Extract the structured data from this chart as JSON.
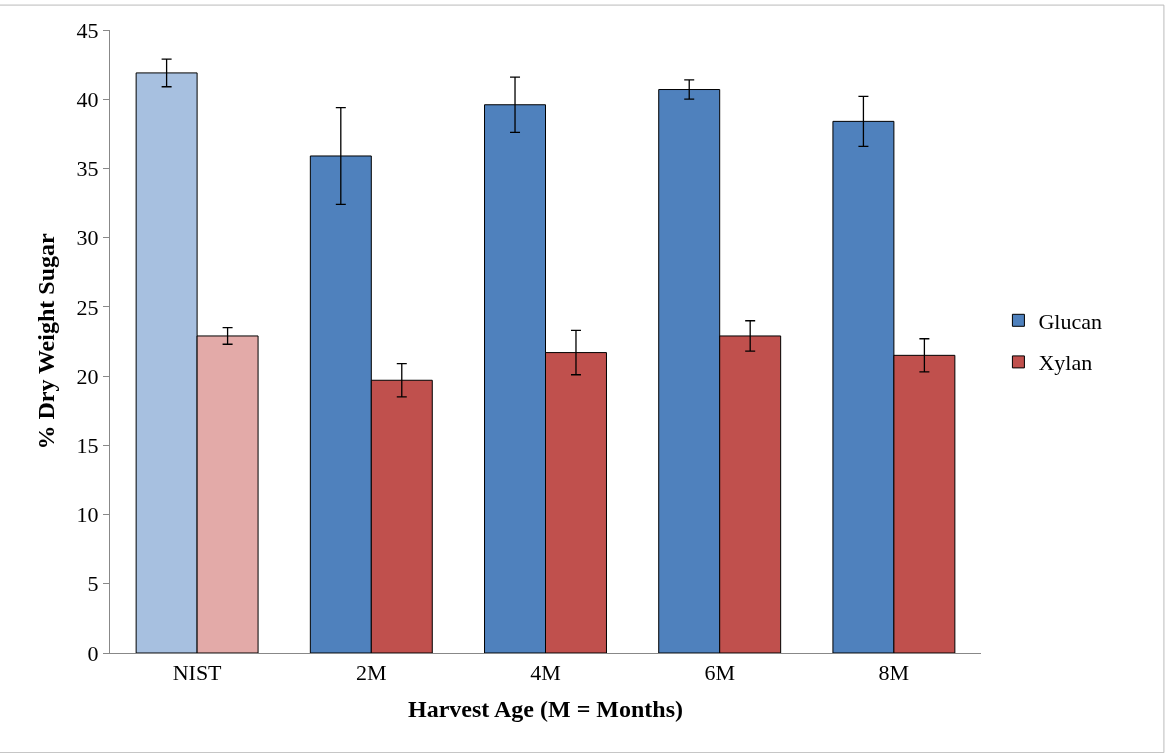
{
  "chart_data": {
    "type": "bar",
    "xlabel": "Harvest Age (M = Months)",
    "ylabel": "% Dry Weight Sugar",
    "categories": [
      "NIST",
      "2M",
      "4M",
      "6M",
      "8M"
    ],
    "series": [
      {
        "name": "Glucan",
        "color": "#4f81bd",
        "colors": [
          "#a7c0e0",
          "#4f81bd",
          "#4f81bd",
          "#4f81bd",
          "#4f81bd"
        ],
        "values": [
          41.9,
          35.9,
          39.6,
          40.7,
          38.4
        ],
        "errors": [
          1.0,
          3.5,
          2.0,
          0.7,
          1.8
        ]
      },
      {
        "name": "Xylan",
        "color": "#c0504d",
        "colors": [
          "#e3aaa8",
          "#c0504d",
          "#c0504d",
          "#c0504d",
          "#c0504d"
        ],
        "values": [
          22.9,
          19.7,
          21.7,
          22.9,
          21.5
        ],
        "errors": [
          0.6,
          1.2,
          1.6,
          1.1,
          1.2
        ]
      }
    ],
    "ylim": [
      0,
      45
    ],
    "yticks": [
      0,
      5,
      10,
      15,
      20,
      25,
      30,
      35,
      40,
      45
    ],
    "legend": "right"
  }
}
